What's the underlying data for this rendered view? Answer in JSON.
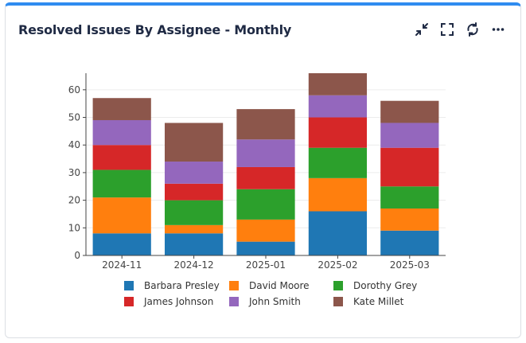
{
  "widget": {
    "title": "Resolved Issues By Assignee - Monthly",
    "icons": [
      "collapse-icon",
      "fullscreen-icon",
      "refresh-icon",
      "more-icon"
    ]
  },
  "chart_data": {
    "type": "bar",
    "stacked": true,
    "title": "Resolved Issues By Assignee - Monthly",
    "xlabel": "",
    "ylabel": "",
    "ylim": [
      0,
      66
    ],
    "yticks": [
      0,
      10,
      20,
      30,
      40,
      50,
      60
    ],
    "categories": [
      "2024-11",
      "2024-12",
      "2025-01",
      "2025-02",
      "2025-03"
    ],
    "series": [
      {
        "name": "Barbara Presley",
        "color": "#1f77b4",
        "values": [
          8,
          8,
          5,
          16,
          9
        ]
      },
      {
        "name": "David Moore",
        "color": "#ff7f0e",
        "values": [
          13,
          3,
          8,
          12,
          8
        ]
      },
      {
        "name": "Dorothy Grey",
        "color": "#2ca02c",
        "values": [
          10,
          9,
          11,
          11,
          8
        ]
      },
      {
        "name": "James Johnson",
        "color": "#d62728",
        "values": [
          9,
          6,
          8,
          11,
          14
        ]
      },
      {
        "name": "John Smith",
        "color": "#9467bd",
        "values": [
          9,
          8,
          10,
          8,
          9
        ]
      },
      {
        "name": "Kate Millet",
        "color": "#8c564b",
        "values": [
          8,
          14,
          11,
          8,
          8
        ]
      }
    ],
    "legend": "bottom"
  }
}
